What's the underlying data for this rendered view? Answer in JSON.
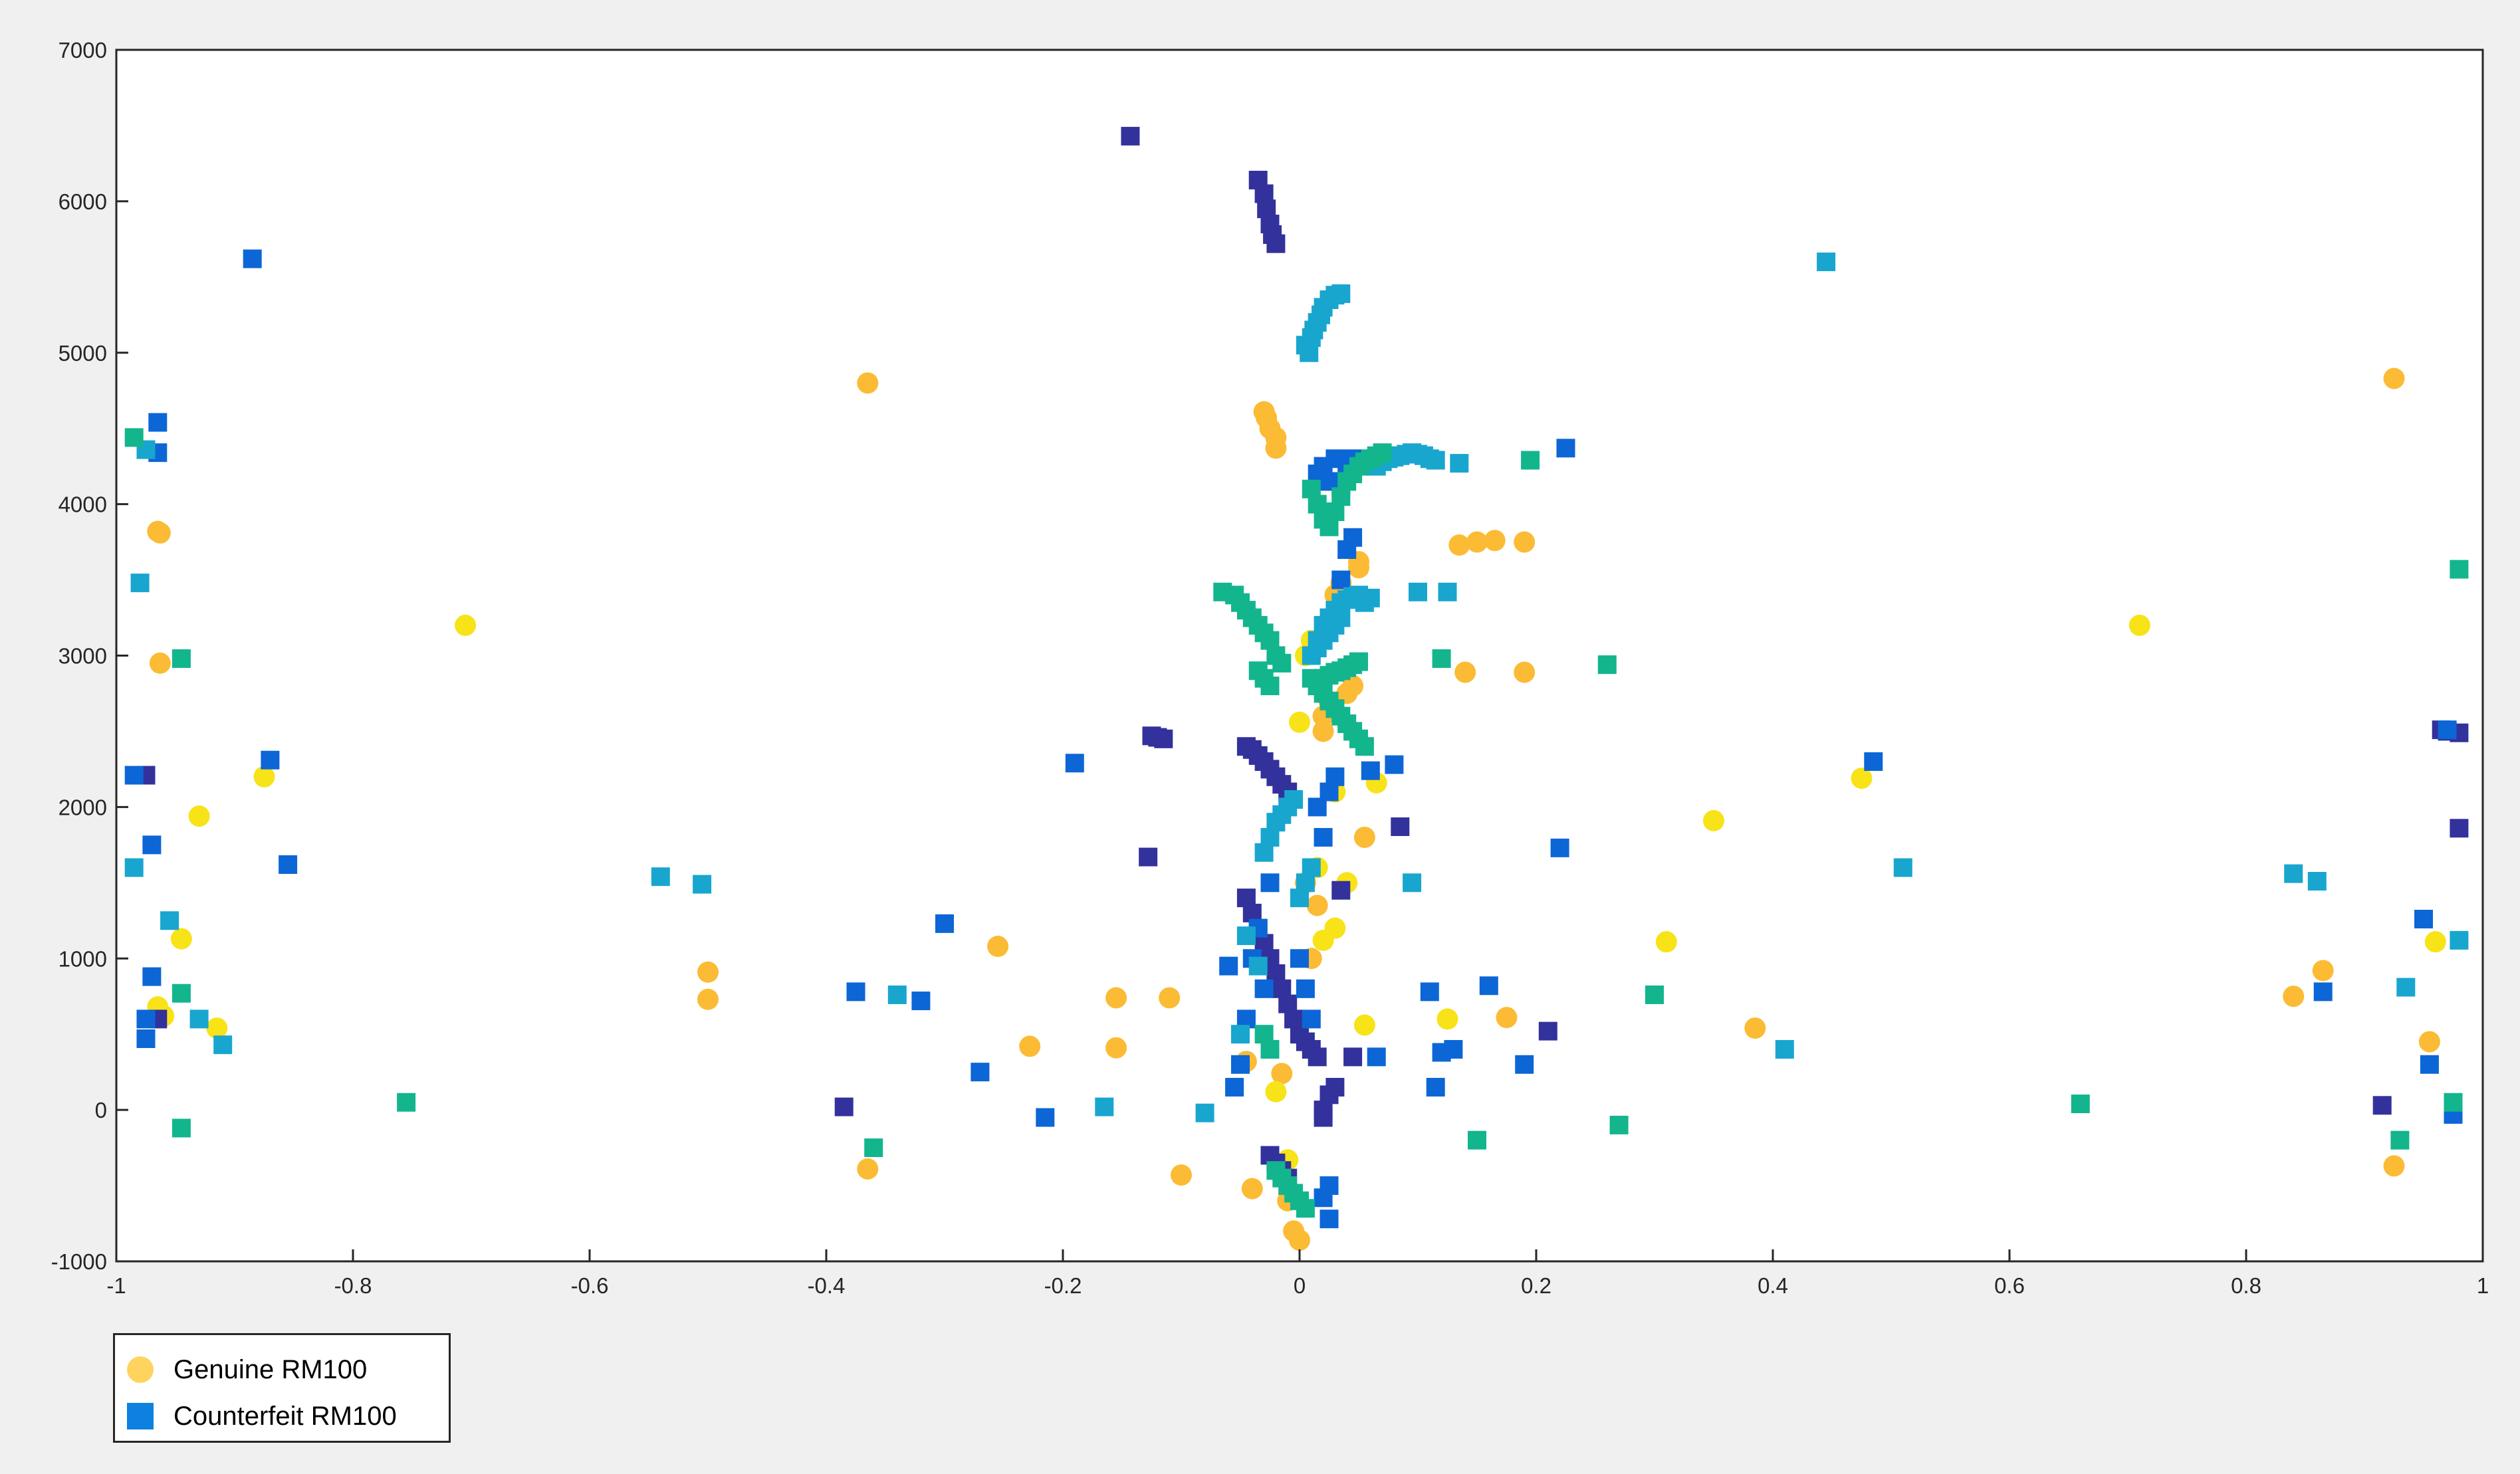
{
  "chart_data": {
    "type": "scatter",
    "title": "",
    "xlabel": "",
    "ylabel": "",
    "xlim": [
      -1,
      1
    ],
    "ylim": [
      -1000,
      7000
    ],
    "xticks": [
      -1,
      -0.8,
      -0.6,
      -0.4,
      -0.2,
      0,
      0.2,
      0.4,
      0.6,
      0.8,
      1
    ],
    "xtick_labels": [
      "-1",
      "-0.8",
      "-0.6",
      "-0.4",
      "-0.2",
      "0",
      "0.2",
      "0.4",
      "0.6",
      "0.8",
      "1"
    ],
    "yticks": [
      -1000,
      0,
      1000,
      2000,
      3000,
      4000,
      5000,
      6000,
      7000
    ],
    "ytick_labels": [
      "-1000",
      "0",
      "1000",
      "2000",
      "3000",
      "4000",
      "5000",
      "6000",
      "7000"
    ],
    "grid": false,
    "legend_placement": "below-left",
    "legend": [
      {
        "label": "Genuine RM100",
        "marker": "circle",
        "color": "#fed45f"
      },
      {
        "label": "Counterfeit RM100",
        "marker": "square",
        "color": "#0d80e0"
      }
    ],
    "palette": {
      "navy": "#33319b",
      "blue": "#0c66d6",
      "cyan": "#18a6cf",
      "teal": "#13b58d",
      "yellow": "#f7e318",
      "orange": "#fbbb34"
    },
    "series": [
      {
        "group": "Genuine RM100",
        "marker": "circle",
        "color": "#fbbb34",
        "x": [
          -0.365,
          -0.965,
          -0.963,
          -0.963,
          -0.5,
          -0.5,
          -0.365,
          -0.255,
          -0.228,
          -0.155,
          -0.155,
          -0.11,
          -0.1,
          -0.045,
          -0.04,
          -0.03,
          -0.028,
          -0.025,
          -0.02,
          -0.02,
          -0.015,
          -0.01,
          -0.005,
          0.0,
          0.005,
          0.01,
          0.015,
          0.02,
          0.02,
          0.025,
          0.03,
          0.035,
          0.04,
          0.045,
          0.05,
          0.05,
          0.055,
          0.135,
          0.14,
          0.15,
          0.165,
          0.175,
          0.19,
          0.19,
          0.385,
          0.84,
          0.865,
          0.925,
          0.925,
          0.955
        ],
        "y": [
          4800,
          3820,
          3810,
          2950,
          910,
          730,
          -390,
          1080,
          420,
          740,
          410,
          740,
          -430,
          320,
          -520,
          4610,
          4570,
          4500,
          4440,
          4370,
          240,
          -600,
          -800,
          -860,
          1500,
          1000,
          1350,
          2500,
          2600,
          2700,
          3400,
          3480,
          2750,
          2800,
          3580,
          3620,
          1800,
          3730,
          2890,
          3750,
          3760,
          610,
          3750,
          2890,
          540,
          750,
          920,
          4830,
          -370,
          450
        ]
      },
      {
        "group": "Genuine RM100",
        "marker": "circle",
        "color": "#f7e318",
        "x": [
          -0.705,
          -0.93,
          -0.945,
          -0.875,
          -0.915,
          -0.965,
          -0.96,
          -0.02,
          -0.01,
          0.0,
          0.005,
          0.01,
          0.015,
          0.02,
          0.03,
          0.04,
          0.055,
          0.065,
          0.125,
          0.31,
          0.35,
          0.71,
          0.475,
          0.96,
          0.03
        ],
        "y": [
          3200,
          1940,
          1130,
          2200,
          540,
          680,
          620,
          120,
          -330,
          2560,
          3000,
          3100,
          1600,
          1120,
          2100,
          1500,
          560,
          2160,
          600,
          1110,
          1910,
          3200,
          2190,
          1110,
          1200
        ]
      },
      {
        "group": "Counterfeit RM100",
        "marker": "square",
        "color": "#33319b",
        "x": [
          -0.143,
          -0.125,
          -0.12,
          -0.115,
          -0.128,
          -0.385,
          -0.965,
          -0.975,
          -0.035,
          -0.03,
          -0.028,
          -0.025,
          -0.023,
          -0.02,
          -0.045,
          -0.04,
          -0.035,
          -0.03,
          -0.025,
          -0.02,
          -0.015,
          -0.01,
          -0.045,
          -0.04,
          -0.035,
          -0.03,
          -0.025,
          -0.02,
          -0.015,
          -0.01,
          -0.005,
          0.0,
          0.005,
          0.01,
          0.015,
          0.02,
          0.02,
          0.025,
          0.03,
          -0.025,
          -0.02,
          -0.015,
          -0.01,
          0.085,
          0.21,
          0.915,
          0.965,
          0.97,
          0.98,
          0.98,
          0.035,
          0.045
        ],
        "y": [
          6430,
          2470,
          2460,
          2450,
          1670,
          20,
          600,
          2210,
          6140,
          6050,
          5950,
          5850,
          5780,
          5720,
          2400,
          2380,
          2340,
          2300,
          2250,
          2200,
          2150,
          2100,
          1400,
          1300,
          1200,
          1100,
          1000,
          900,
          800,
          700,
          600,
          500,
          450,
          400,
          350,
          -50,
          0,
          100,
          150,
          -300,
          -350,
          -400,
          -450,
          1870,
          520,
          30,
          2510,
          2500,
          2490,
          1860,
          1450,
          350
        ]
      },
      {
        "group": "Counterfeit RM100",
        "marker": "square",
        "color": "#0c66d6",
        "x": [
          -0.885,
          -0.965,
          -0.97,
          -0.965,
          -0.985,
          -0.97,
          -0.975,
          -0.87,
          -0.855,
          -0.975,
          -0.375,
          -0.3,
          -0.32,
          -0.27,
          -0.215,
          -0.19,
          -0.06,
          -0.055,
          -0.05,
          -0.045,
          -0.04,
          -0.035,
          -0.03,
          -0.025,
          0.0,
          0.005,
          0.01,
          0.015,
          0.02,
          0.025,
          0.03,
          0.035,
          0.04,
          0.045,
          0.06,
          0.065,
          0.08,
          0.11,
          0.115,
          0.12,
          0.13,
          0.16,
          0.19,
          0.22,
          0.225,
          0.485,
          0.865,
          0.95,
          0.955,
          0.975,
          0.97,
          0.015,
          0.02,
          0.025,
          0.03,
          0.035,
          0.04,
          0.045,
          0.025,
          0.02,
          0.025
        ],
        "y": [
          5620,
          4540,
          1750,
          4340,
          2210,
          880,
          470,
          2310,
          1620,
          600,
          780,
          1230,
          720,
          250,
          -50,
          2290,
          950,
          150,
          300,
          600,
          1000,
          1200,
          800,
          1500,
          1000,
          800,
          600,
          2000,
          1800,
          2100,
          2200,
          3500,
          3700,
          3780,
          2240,
          350,
          2280,
          780,
          150,
          380,
          400,
          820,
          300,
          1730,
          4370,
          2300,
          780,
          1260,
          300,
          -30,
          2510,
          4200,
          4250,
          4150,
          4300,
          4100,
          4250,
          4300,
          -500,
          -580,
          -720
        ]
      },
      {
        "group": "Counterfeit RM100",
        "marker": "square",
        "color": "#18a6cf",
        "x": [
          -0.98,
          -0.985,
          -0.975,
          -0.91,
          -0.93,
          -0.955,
          -0.54,
          -0.505,
          -0.34,
          -0.165,
          -0.08,
          -0.05,
          -0.045,
          -0.035,
          -0.03,
          -0.025,
          -0.02,
          -0.015,
          -0.01,
          -0.005,
          0.0,
          0.005,
          0.01,
          0.015,
          0.02,
          0.025,
          0.03,
          0.035,
          0.04,
          0.045,
          0.05,
          0.055,
          0.06,
          0.065,
          0.07,
          0.075,
          0.08,
          0.085,
          0.09,
          0.095,
          0.1,
          0.105,
          0.11,
          0.115,
          0.125,
          0.135,
          0.1,
          0.095,
          0.445,
          0.51,
          0.41,
          0.84,
          0.86,
          0.98,
          0.935,
          0.005,
          0.008,
          0.01,
          0.012,
          0.015,
          0.018,
          0.02,
          0.025,
          0.03,
          0.035,
          0.01,
          0.015,
          0.02,
          0.025,
          0.03,
          0.035
        ],
        "y": [
          3480,
          1600,
          4360,
          430,
          600,
          1250,
          1540,
          1490,
          760,
          20,
          -20,
          500,
          1150,
          950,
          1700,
          1800,
          1900,
          1950,
          2000,
          2050,
          1400,
          1500,
          1600,
          3100,
          3200,
          3250,
          3300,
          3350,
          3370,
          3390,
          3400,
          3350,
          3380,
          4250,
          4280,
          4300,
          4310,
          4320,
          4330,
          4340,
          4330,
          4320,
          4300,
          4290,
          3420,
          4270,
          3420,
          1500,
          5600,
          1600,
          400,
          1560,
          1510,
          1120,
          810,
          5050,
          5000,
          5100,
          5150,
          5200,
          5250,
          5300,
          5350,
          5380,
          5390,
          3000,
          3050,
          3100,
          3150,
          3200,
          3250
        ]
      },
      {
        "group": "Counterfeit RM100",
        "marker": "square",
        "color": "#13b58d",
        "x": [
          -0.985,
          -0.945,
          -0.945,
          -0.945,
          -0.755,
          -0.36,
          -0.065,
          -0.055,
          -0.05,
          -0.045,
          -0.04,
          -0.035,
          -0.03,
          -0.025,
          -0.02,
          -0.015,
          -0.035,
          -0.03,
          -0.025,
          -0.02,
          -0.015,
          -0.01,
          -0.005,
          0.0,
          0.005,
          0.01,
          0.015,
          0.02,
          0.025,
          0.03,
          0.035,
          0.04,
          0.045,
          0.05,
          0.055,
          0.06,
          0.065,
          0.07,
          0.12,
          0.15,
          0.195,
          0.26,
          0.27,
          0.3,
          0.66,
          0.93,
          0.98,
          0.975,
          0.015,
          0.02,
          0.025,
          0.03,
          0.035,
          0.04,
          0.045,
          0.05,
          0.01,
          0.015,
          0.02,
          0.025,
          0.03,
          0.035,
          0.04,
          0.045,
          0.05,
          0.055,
          -0.03,
          -0.025
        ],
        "y": [
          4440,
          2980,
          -120,
          770,
          50,
          -250,
          3420,
          3400,
          3350,
          3300,
          3250,
          3200,
          3150,
          3100,
          3000,
          2950,
          2900,
          2850,
          2800,
          -400,
          -450,
          -500,
          -550,
          -600,
          -650,
          4100,
          4000,
          3900,
          3850,
          3950,
          4050,
          4150,
          4200,
          4250,
          4280,
          4300,
          4320,
          4340,
          2980,
          -200,
          4290,
          2940,
          -100,
          760,
          40,
          -200,
          3570,
          50,
          2800,
          2850,
          2870,
          2890,
          2900,
          2920,
          2940,
          2960,
          2850,
          2800,
          2750,
          2700,
          2650,
          2600,
          2550,
          2500,
          2450,
          2400,
          500,
          400
        ]
      }
    ]
  }
}
